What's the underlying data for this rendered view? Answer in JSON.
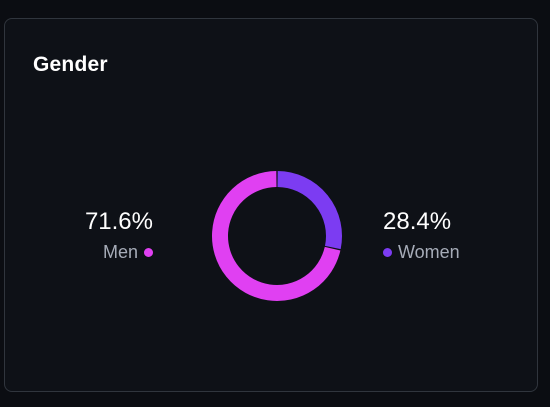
{
  "card": {
    "title": "Gender"
  },
  "chart_data": {
    "type": "pie",
    "title": "Gender",
    "style": "donut",
    "categories": [
      "Men",
      "Women"
    ],
    "values": [
      71.6,
      28.4
    ],
    "value_labels": [
      "71.6%",
      "28.4%"
    ],
    "colors": [
      "#e040f2",
      "#7c3cf2"
    ],
    "legend_placement": "beside-values"
  }
}
